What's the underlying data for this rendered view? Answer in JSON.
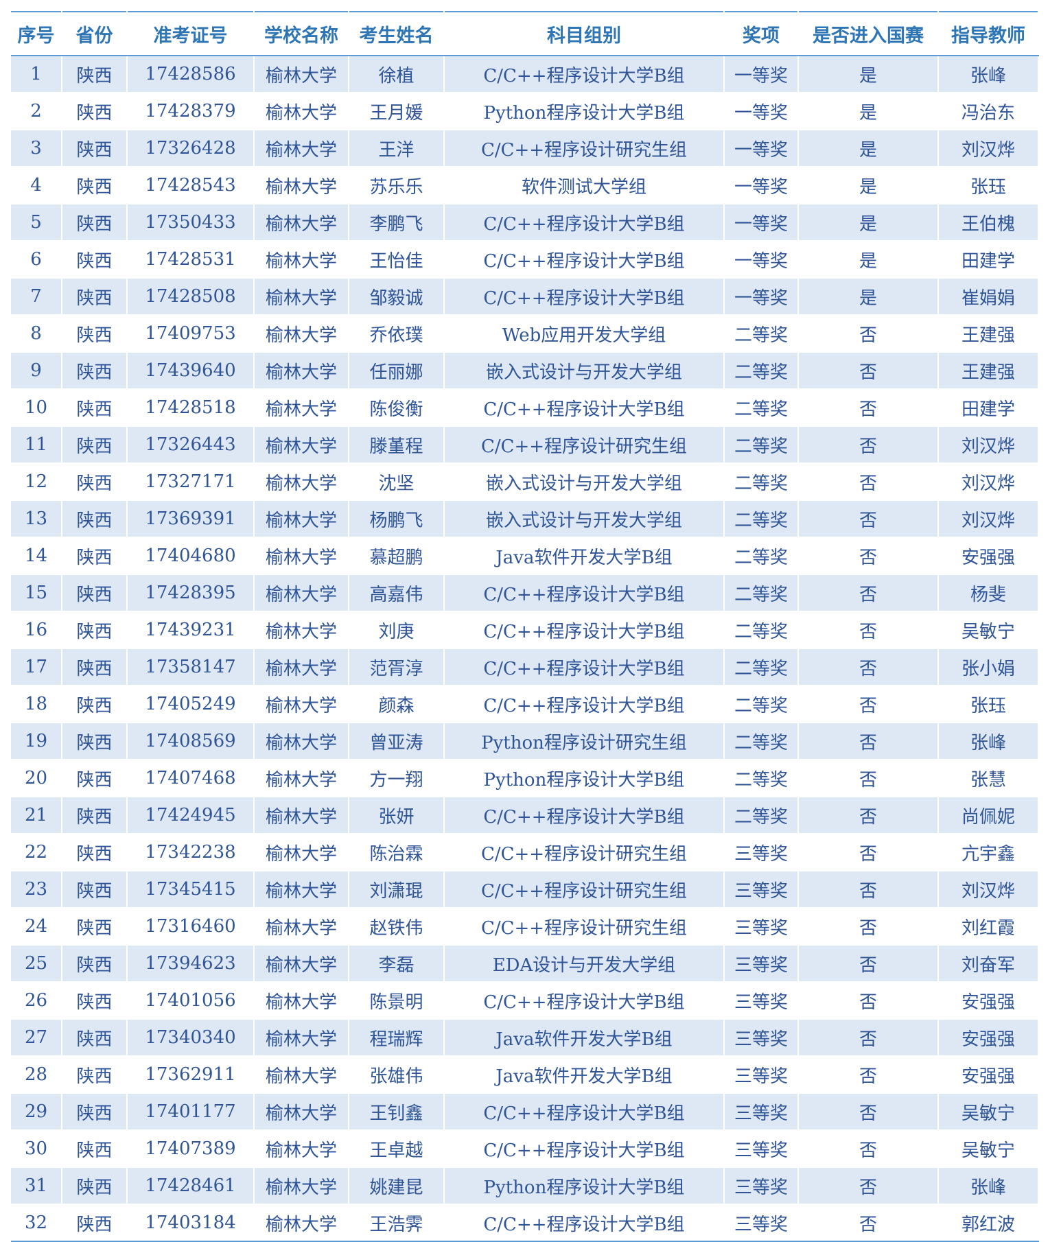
{
  "table": {
    "header": [
      "序号",
      "省份",
      "准考证号",
      "学校名称",
      "考生姓名",
      "科目组别",
      "奖项",
      "是否进入国赛",
      "指导教师"
    ],
    "rows": [
      [
        "1",
        "陕西",
        "17428586",
        "榆林大学",
        "徐植",
        "C/C++程序设计大学B组",
        "一等奖",
        "是",
        "张峰"
      ],
      [
        "2",
        "陕西",
        "17428379",
        "榆林大学",
        "王月媛",
        "Python程序设计大学B组",
        "一等奖",
        "是",
        "冯治东"
      ],
      [
        "3",
        "陕西",
        "17326428",
        "榆林大学",
        "王洋",
        "C/C++程序设计研究生组",
        "一等奖",
        "是",
        "刘汉烨"
      ],
      [
        "4",
        "陕西",
        "17428543",
        "榆林大学",
        "苏乐乐",
        "软件测试大学组",
        "一等奖",
        "是",
        "张珏"
      ],
      [
        "5",
        "陕西",
        "17350433",
        "榆林大学",
        "李鹏飞",
        "C/C++程序设计大学B组",
        "一等奖",
        "是",
        "王伯槐"
      ],
      [
        "6",
        "陕西",
        "17428531",
        "榆林大学",
        "王怡佳",
        "C/C++程序设计大学B组",
        "一等奖",
        "是",
        "田建学"
      ],
      [
        "7",
        "陕西",
        "17428508",
        "榆林大学",
        "邹毅诚",
        "C/C++程序设计大学B组",
        "一等奖",
        "是",
        "崔娟娟"
      ],
      [
        "8",
        "陕西",
        "17409753",
        "榆林大学",
        "乔依璞",
        "Web应用开发大学组",
        "二等奖",
        "否",
        "王建强"
      ],
      [
        "9",
        "陕西",
        "17439640",
        "榆林大学",
        "任丽娜",
        "嵌入式设计与开发大学组",
        "二等奖",
        "否",
        "王建强"
      ],
      [
        "10",
        "陕西",
        "17428518",
        "榆林大学",
        "陈俊衡",
        "C/C++程序设计大学B组",
        "二等奖",
        "否",
        "田建学"
      ],
      [
        "11",
        "陕西",
        "17326443",
        "榆林大学",
        "滕堇程",
        "C/C++程序设计研究生组",
        "二等奖",
        "否",
        "刘汉烨"
      ],
      [
        "12",
        "陕西",
        "17327171",
        "榆林大学",
        "沈坚",
        "嵌入式设计与开发大学组",
        "二等奖",
        "否",
        "刘汉烨"
      ],
      [
        "13",
        "陕西",
        "17369391",
        "榆林大学",
        "杨鹏飞",
        "嵌入式设计与开发大学组",
        "二等奖",
        "否",
        "刘汉烨"
      ],
      [
        "14",
        "陕西",
        "17404680",
        "榆林大学",
        "慕超鹏",
        "Java软件开发大学B组",
        "二等奖",
        "否",
        "安强强"
      ],
      [
        "15",
        "陕西",
        "17428395",
        "榆林大学",
        "高嘉伟",
        "C/C++程序设计大学B组",
        "二等奖",
        "否",
        "杨斐"
      ],
      [
        "16",
        "陕西",
        "17439231",
        "榆林大学",
        "刘庚",
        "C/C++程序设计大学B组",
        "二等奖",
        "否",
        "吴敏宁"
      ],
      [
        "17",
        "陕西",
        "17358147",
        "榆林大学",
        "范胥淳",
        "C/C++程序设计大学B组",
        "二等奖",
        "否",
        "张小娟"
      ],
      [
        "18",
        "陕西",
        "17405249",
        "榆林大学",
        "颜森",
        "C/C++程序设计大学B组",
        "二等奖",
        "否",
        "张珏"
      ],
      [
        "19",
        "陕西",
        "17408569",
        "榆林大学",
        "曾亚涛",
        "Python程序设计研究生组",
        "二等奖",
        "否",
        "张峰"
      ],
      [
        "20",
        "陕西",
        "17407468",
        "榆林大学",
        "方一翔",
        "Python程序设计大学B组",
        "二等奖",
        "否",
        "张慧"
      ],
      [
        "21",
        "陕西",
        "17424945",
        "榆林大学",
        "张妍",
        "C/C++程序设计大学B组",
        "二等奖",
        "否",
        "尚佩妮"
      ],
      [
        "22",
        "陕西",
        "17342238",
        "榆林大学",
        "陈治霖",
        "C/C++程序设计研究生组",
        "三等奖",
        "否",
        "亢宇鑫"
      ],
      [
        "23",
        "陕西",
        "17345415",
        "榆林大学",
        "刘潇琨",
        "C/C++程序设计研究生组",
        "三等奖",
        "否",
        "刘汉烨"
      ],
      [
        "24",
        "陕西",
        "17316460",
        "榆林大学",
        "赵铁伟",
        "C/C++程序设计研究生组",
        "三等奖",
        "否",
        "刘红霞"
      ],
      [
        "25",
        "陕西",
        "17394623",
        "榆林大学",
        "李磊",
        "EDA设计与开发大学组",
        "三等奖",
        "否",
        "刘奋军"
      ],
      [
        "26",
        "陕西",
        "17401056",
        "榆林大学",
        "陈景明",
        "C/C++程序设计大学B组",
        "三等奖",
        "否",
        "安强强"
      ],
      [
        "27",
        "陕西",
        "17340340",
        "榆林大学",
        "程瑞辉",
        "Java软件开发大学B组",
        "三等奖",
        "否",
        "安强强"
      ],
      [
        "28",
        "陕西",
        "17362911",
        "榆林大学",
        "张雄伟",
        "Java软件开发大学B组",
        "三等奖",
        "否",
        "安强强"
      ],
      [
        "29",
        "陕西",
        "17401177",
        "榆林大学",
        "王钊鑫",
        "C/C++程序设计大学B组",
        "三等奖",
        "否",
        "吴敏宁"
      ],
      [
        "30",
        "陕西",
        "17407389",
        "榆林大学",
        "王卓越",
        "C/C++程序设计大学B组",
        "三等奖",
        "否",
        "吴敏宁"
      ],
      [
        "31",
        "陕西",
        "17428461",
        "榆林大学",
        "姚建昆",
        "Python程序设计大学B组",
        "三等奖",
        "否",
        "张峰"
      ],
      [
        "32",
        "陕西",
        "17403184",
        "榆林大学",
        "王浩霁",
        "C/C++程序设计大学B组",
        "三等奖",
        "否",
        "郭红波"
      ]
    ]
  }
}
